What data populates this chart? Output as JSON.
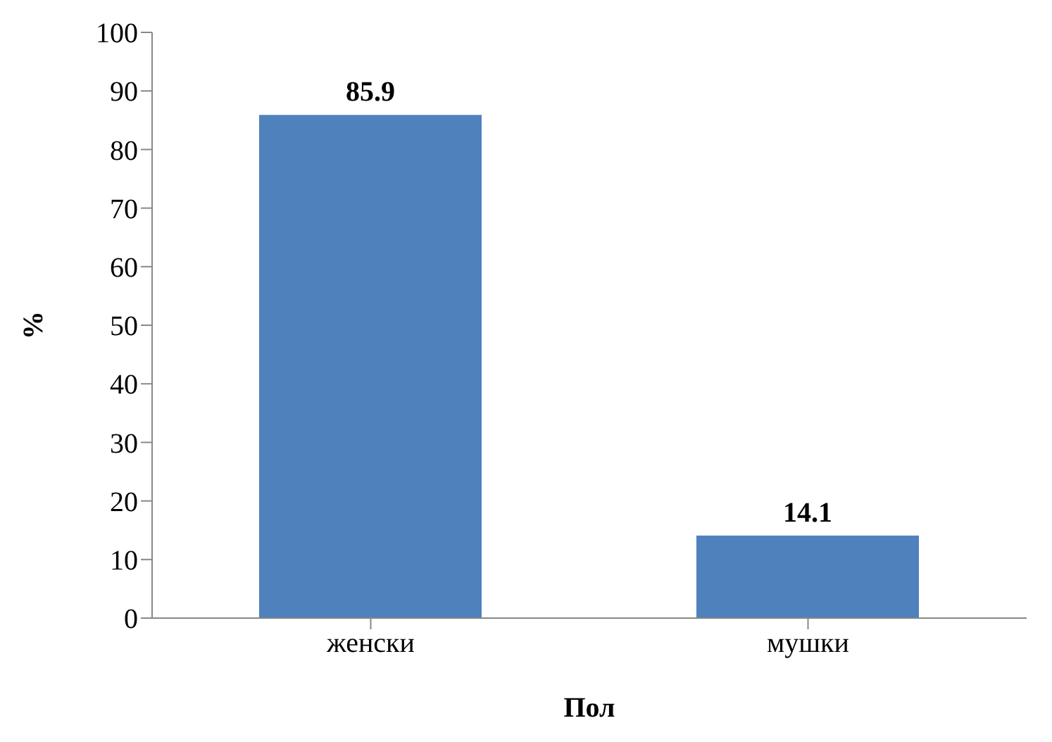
{
  "chart_data": {
    "type": "bar",
    "xlabel": "Пол",
    "ylabel": "%",
    "categories": [
      "женски",
      "мушки"
    ],
    "values": [
      85.9,
      14.1
    ],
    "color": "#4f81bd",
    "ylim": [
      0,
      100
    ],
    "yticks": [
      0,
      10,
      20,
      30,
      40,
      50,
      60,
      70,
      80,
      90,
      100
    ],
    "grid": false,
    "data_labels": true
  }
}
